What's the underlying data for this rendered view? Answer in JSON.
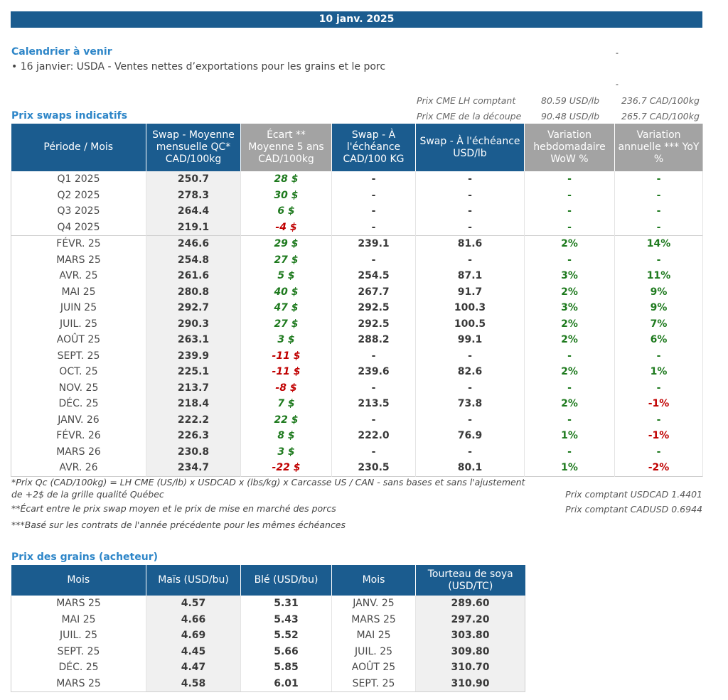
{
  "date": "10 janv. 2025",
  "calendar": {
    "title": "Calendrier à venir",
    "item": "• 16 janvier: USDA - Ventes nettes d’exportations pour les grains et le porc",
    "dash": "-"
  },
  "cme": [
    {
      "label": "Prix CME LH comptant",
      "usd": "80.59 USD/lb",
      "cad": "236.7 CAD/100kg"
    },
    {
      "label": "Prix CME de la découpe",
      "usd": "90.48 USD/lb",
      "cad": "265.7 CAD/100kg"
    }
  ],
  "swaps": {
    "title": "Prix swaps indicatifs",
    "headers": [
      "Période / Mois",
      "Swap - Moyenne mensuelle QC* CAD/100kg",
      "Écart ** Moyenne 5 ans CAD/100kg",
      "Swap - À l'échéance CAD/100 KG",
      "Swap - À l'échéance USD/lb",
      "Variation hebdomadaire WoW %",
      "Variation annuelle *** YoY %"
    ],
    "rows": [
      {
        "p": "Q1 2025",
        "s": "250.7",
        "e": "28 $",
        "e_sign": "pos",
        "c": "-",
        "u": "-",
        "w": "-",
        "w_sign": "pos",
        "y": "-",
        "y_sign": "pos",
        "sep": false
      },
      {
        "p": "Q2 2025",
        "s": "278.3",
        "e": "30 $",
        "e_sign": "pos",
        "c": "-",
        "u": "-",
        "w": "-",
        "w_sign": "pos",
        "y": "-",
        "y_sign": "pos",
        "sep": false
      },
      {
        "p": "Q3 2025",
        "s": "264.4",
        "e": "6 $",
        "e_sign": "pos",
        "c": "-",
        "u": "-",
        "w": "-",
        "w_sign": "pos",
        "y": "-",
        "y_sign": "pos",
        "sep": false
      },
      {
        "p": "Q4 2025",
        "s": "219.1",
        "e": "-4 $",
        "e_sign": "neg",
        "c": "-",
        "u": "-",
        "w": "-",
        "w_sign": "pos",
        "y": "-",
        "y_sign": "pos",
        "sep": false
      },
      {
        "p": "FÉVR. 25",
        "s": "246.6",
        "e": "29 $",
        "e_sign": "pos",
        "c": "239.1",
        "u": "81.6",
        "w": "2%",
        "w_sign": "pos",
        "y": "14%",
        "y_sign": "pos",
        "sep": true
      },
      {
        "p": "MARS 25",
        "s": "254.8",
        "e": "27 $",
        "e_sign": "pos",
        "c": "-",
        "u": "-",
        "w": "-",
        "w_sign": "pos",
        "y": "-",
        "y_sign": "pos",
        "sep": false
      },
      {
        "p": "AVR. 25",
        "s": "261.6",
        "e": "5 $",
        "e_sign": "pos",
        "c": "254.5",
        "u": "87.1",
        "w": "3%",
        "w_sign": "pos",
        "y": "11%",
        "y_sign": "pos",
        "sep": false
      },
      {
        "p": "MAI 25",
        "s": "280.8",
        "e": "40 $",
        "e_sign": "pos",
        "c": "267.7",
        "u": "91.7",
        "w": "2%",
        "w_sign": "pos",
        "y": "9%",
        "y_sign": "pos",
        "sep": false
      },
      {
        "p": "JUIN 25",
        "s": "292.7",
        "e": "47 $",
        "e_sign": "pos",
        "c": "292.5",
        "u": "100.3",
        "w": "3%",
        "w_sign": "pos",
        "y": "9%",
        "y_sign": "pos",
        "sep": false
      },
      {
        "p": "JUIL. 25",
        "s": "290.3",
        "e": "27 $",
        "e_sign": "pos",
        "c": "292.5",
        "u": "100.5",
        "w": "2%",
        "w_sign": "pos",
        "y": "7%",
        "y_sign": "pos",
        "sep": false
      },
      {
        "p": "AOÛT 25",
        "s": "263.1",
        "e": "3 $",
        "e_sign": "pos",
        "c": "288.2",
        "u": "99.1",
        "w": "2%",
        "w_sign": "pos",
        "y": "6%",
        "y_sign": "pos",
        "sep": false
      },
      {
        "p": "SEPT. 25",
        "s": "239.9",
        "e": "-11 $",
        "e_sign": "neg",
        "c": "-",
        "u": "-",
        "w": "-",
        "w_sign": "pos",
        "y": "-",
        "y_sign": "pos",
        "sep": false
      },
      {
        "p": "OCT. 25",
        "s": "225.1",
        "e": "-11 $",
        "e_sign": "neg",
        "c": "239.6",
        "u": "82.6",
        "w": "2%",
        "w_sign": "pos",
        "y": "1%",
        "y_sign": "pos",
        "sep": false
      },
      {
        "p": "NOV. 25",
        "s": "213.7",
        "e": "-8 $",
        "e_sign": "neg",
        "c": "-",
        "u": "-",
        "w": "-",
        "w_sign": "pos",
        "y": "-",
        "y_sign": "pos",
        "sep": false
      },
      {
        "p": "DÉC. 25",
        "s": "218.4",
        "e": "7 $",
        "e_sign": "pos",
        "c": "213.5",
        "u": "73.8",
        "w": "2%",
        "w_sign": "pos",
        "y": "-1%",
        "y_sign": "neg",
        "sep": false
      },
      {
        "p": "JANV. 26",
        "s": "222.2",
        "e": "22 $",
        "e_sign": "pos",
        "c": "-",
        "u": "-",
        "w": "-",
        "w_sign": "pos",
        "y": "-",
        "y_sign": "pos",
        "sep": false
      },
      {
        "p": "FÉVR. 26",
        "s": "226.3",
        "e": "8 $",
        "e_sign": "pos",
        "c": "222.0",
        "u": "76.9",
        "w": "1%",
        "w_sign": "pos",
        "y": "-1%",
        "y_sign": "neg",
        "sep": false
      },
      {
        "p": "MARS 26",
        "s": "230.8",
        "e": "3 $",
        "e_sign": "pos",
        "c": "-",
        "u": "-",
        "w": "-",
        "w_sign": "pos",
        "y": "-",
        "y_sign": "pos",
        "sep": false
      },
      {
        "p": "AVR. 26",
        "s": "234.7",
        "e": "-22 $",
        "e_sign": "neg",
        "c": "230.5",
        "u": "80.1",
        "w": "1%",
        "w_sign": "pos",
        "y": "-2%",
        "y_sign": "neg",
        "sep": false
      }
    ]
  },
  "notes": {
    "n1": "*Prix Qc (CAD/100kg) = LH CME (US/lb) x USDCAD x (lbs/kg) x Carcasse US / CAN - sans bases et sans l'ajustement de +2$ de la grille qualité Québec",
    "n2": "**Écart entre le prix swap moyen et le prix de mise en marché des porcs",
    "n3": "***Basé sur les contrats de l'année précédente pour les mêmes échéances",
    "fx1": "Prix comptant USDCAD 1.4401",
    "fx2": "Prix comptant CADUSD 0.6944"
  },
  "grains": {
    "title": "Prix des grains (acheteur)",
    "headers": [
      "Mois",
      "Maïs (USD/bu)",
      "Blé (USD/bu)",
      "Mois",
      "Tourteau de soya (USD/TC)"
    ],
    "rows": [
      {
        "m1": "MARS 25",
        "corn": "4.57",
        "wheat": "5.31",
        "m2": "JANV. 25",
        "soy": "289.60"
      },
      {
        "m1": "MAI 25",
        "corn": "4.66",
        "wheat": "5.43",
        "m2": "MARS 25",
        "soy": "297.20"
      },
      {
        "m1": "JUIL. 25",
        "corn": "4.69",
        "wheat": "5.52",
        "m2": "MAI 25",
        "soy": "303.80"
      },
      {
        "m1": "SEPT. 25",
        "corn": "4.45",
        "wheat": "5.66",
        "m2": "JUIL. 25",
        "soy": "309.80"
      },
      {
        "m1": "DÉC. 25",
        "corn": "4.47",
        "wheat": "5.85",
        "m2": "AOÛT 25",
        "soy": "310.70"
      },
      {
        "m1": "MARS 25",
        "corn": "4.58",
        "wheat": "6.01",
        "m2": "SEPT. 25",
        "soy": "310.90"
      }
    ]
  },
  "colors": {
    "header_blue": "#1b5c8f",
    "header_gray": "#a3a3a3",
    "title_blue": "#2e86c8",
    "positive": "#1e7a1e",
    "negative": "#c00000"
  }
}
